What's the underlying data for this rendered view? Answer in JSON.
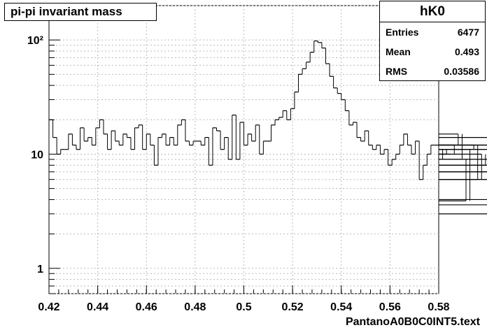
{
  "title": "pi-pi invariant mass",
  "stats": {
    "name": "hK0",
    "rows": [
      {
        "label": "Entries",
        "value": "6477"
      },
      {
        "label": "Mean",
        "value": "0.493"
      },
      {
        "label": "RMS",
        "value": "0.03586"
      }
    ]
  },
  "footer_label": "PantanoA0B0C0INT5.text",
  "chart_data": {
    "type": "bar",
    "style": "step-histogram",
    "x_range": [
      0.42,
      0.58
    ],
    "y_scale": "log",
    "y_range": [
      0.6,
      200
    ],
    "grid": true,
    "x_ticks": [
      "0.42",
      "0.44",
      "0.46",
      "0.48",
      "0.5",
      "0.52",
      "0.54",
      "0.56",
      "0.58"
    ],
    "y_ticks": [
      {
        "value": 1,
        "label": "1"
      },
      {
        "value": 10,
        "label": "10"
      },
      {
        "value": 100,
        "label": "10²"
      }
    ],
    "bin_width": 0.0016,
    "values": [
      20,
      14,
      10,
      11,
      11,
      15,
      12,
      11,
      17,
      13,
      14,
      12,
      17,
      20,
      15,
      11,
      16,
      13,
      12,
      15,
      14,
      11,
      17,
      18,
      11,
      15,
      12,
      8,
      14,
      15,
      12,
      14,
      12,
      18,
      20,
      13,
      12,
      13,
      13,
      12,
      14,
      8,
      17,
      16,
      11,
      14,
      9,
      22,
      9,
      19,
      12,
      15,
      13,
      18,
      10,
      13,
      13,
      18,
      20,
      21,
      24,
      20,
      25,
      35,
      50,
      56,
      64,
      78,
      98,
      95,
      85,
      62,
      48,
      38,
      34,
      30,
      24,
      18,
      19,
      14,
      13,
      16,
      12,
      11,
      12,
      10,
      11,
      8,
      9,
      10,
      12,
      15,
      12,
      10,
      13,
      6,
      8,
      10,
      12,
      12,
      9,
      11,
      10,
      10,
      12,
      15,
      9,
      3.9,
      11,
      12,
      6,
      10,
      8,
      3.6,
      11,
      8,
      6,
      14,
      9,
      12,
      3,
      9,
      12,
      9,
      4,
      11,
      7,
      8,
      6,
      7
    ]
  },
  "colors": {
    "line": "#000000",
    "grid": "#bbbbbb",
    "background": "#ffffff"
  }
}
